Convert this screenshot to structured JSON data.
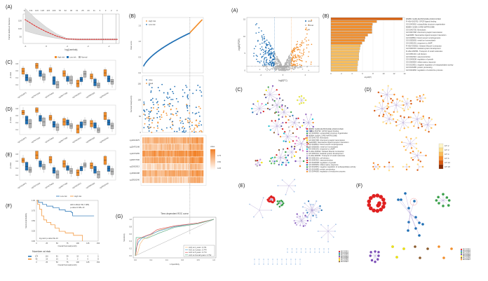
{
  "panels": {
    "left_A": "(A)",
    "left_B": "(B)",
    "left_C": "(C)",
    "left_D": "(D)",
    "left_E": "(E)",
    "left_F": "(F)",
    "left_G": "(G)",
    "right_A": "(A)",
    "right_B": "(B)",
    "right_C": "(C)",
    "right_D": "(D)",
    "right_E": "(E)",
    "right_F": "(F)"
  },
  "colors": {
    "orange": "#f28e2b",
    "blue": "#1f6fb4",
    "grey": "#b5b5b5",
    "red": "#e02020",
    "purple": "#7a5bb5",
    "green": "#3aa04a"
  },
  "chart_data": [
    {
      "id": "lasso_cv",
      "type": "line",
      "xlabel": "log(Lambda)",
      "ylabel": "Partial Likelihood Deviance",
      "top_ticks": [
        "129",
        "131",
        "126",
        "126",
        "115",
        "103",
        "78",
        "62",
        "46",
        "31",
        "25",
        "20",
        "11",
        "6",
        "3",
        "2",
        "0"
      ],
      "x_ticks": [
        "-6",
        "-5",
        "-4",
        "-3",
        "-2"
      ],
      "y_ticks": [
        "50",
        "100",
        "150"
      ],
      "xlim": [
        -6.1,
        -1.5
      ],
      "ylim": [
        10,
        190
      ],
      "x": [
        -6,
        -5.5,
        -5,
        -4.5,
        -4,
        -3.5,
        -3,
        -2.5,
        -2,
        -1.6
      ],
      "y": [
        155,
        115,
        82,
        55,
        37,
        35,
        35,
        35,
        35,
        35
      ],
      "vlines": [
        -2.3,
        -1.65
      ]
    },
    {
      "id": "risk_score",
      "type": "scatter",
      "ylabel": "Risk score",
      "y_ticks": [
        "0.0",
        "0.5",
        "1.0",
        "1.5"
      ],
      "ylim": [
        0,
        1.75
      ],
      "legend": [
        "High risk",
        "Low risk"
      ],
      "cutoff_fraction": 0.78,
      "low_range": [
        0.08,
        1.26
      ],
      "high_range": [
        1.27,
        1.72
      ]
    },
    {
      "id": "survival_status",
      "type": "scatter",
      "ylabel": "Survival time(month)",
      "y_ticks": [
        "0",
        "50",
        "100",
        "150"
      ],
      "ylim": [
        0,
        175
      ],
      "legend": [
        "Alive",
        "Dead"
      ]
    },
    {
      "id": "expression_heatmap",
      "type": "heatmap",
      "rows": [
        "cg13014975",
        "cg25470148",
        "cg11679455",
        "cg09077096",
        "cg22602913",
        "cg16990188",
        "cg19516240"
      ],
      "legend_title": "value",
      "legend_ticks": [
        "0.75",
        "0.50",
        "0.25"
      ]
    },
    {
      "id": "boxplots",
      "type": "bar",
      "legend": [
        "High risk",
        "Low risk",
        "Normal"
      ],
      "ylabel": "β value",
      "categories": [
        "cg13014975",
        "cg25470148",
        "cg11679455",
        "cg09077096",
        "cg22602913",
        "cg16990188",
        "cg19516240"
      ],
      "panels": [
        {
          "name": "C",
          "high": [
            0.68,
            0.86,
            0.72,
            0.6,
            0.26,
            0.5,
            0.62
          ],
          "low": [
            0.46,
            0.6,
            0.36,
            0.42,
            0.4,
            0.3,
            0.42
          ],
          "normal": [
            0.38,
            0.48,
            0.22,
            0.38,
            0.58,
            0.2,
            0.32
          ]
        },
        {
          "name": "D",
          "high": [
            0.8,
            0.88,
            0.62,
            0.48,
            0.24,
            0.42,
            0.68
          ],
          "low": [
            0.54,
            0.6,
            0.4,
            0.46,
            0.38,
            0.36,
            0.46
          ],
          "normal": [
            0.42,
            0.48,
            0.3,
            0.34,
            0.46,
            0.2,
            0.34
          ]
        },
        {
          "name": "E",
          "high": [
            0.72,
            0.9,
            0.74,
            0.6,
            0.3,
            0.54,
            0.72
          ],
          "low": [
            0.52,
            0.6,
            0.38,
            0.46,
            0.44,
            0.4,
            0.44
          ],
          "normal": [
            0.4,
            0.5,
            0.24,
            0.36,
            0.56,
            0.24,
            0.34
          ]
        }
      ]
    },
    {
      "id": "kaplan_meier",
      "type": "line",
      "legend": [
        "Low risk",
        "High risk"
      ],
      "xlabel": "Overall Survival(month)",
      "ylabel": "Survival probability",
      "x_ticks": [
        "0",
        "25",
        "50",
        "75",
        "100",
        "125",
        "150"
      ],
      "y_ticks": [
        "0.00",
        "0.25",
        "0.50",
        "0.75",
        "1.00"
      ],
      "xlim": [
        0,
        150
      ],
      "ylim": [
        0,
        1
      ],
      "annotations": [
        "HR=4.460(2.790,7.085)",
        "p-value=3.48e-10",
        "log-rank p-value=9e-10"
      ],
      "series": [
        {
          "name": "Low risk",
          "x": [
            0,
            5,
            15,
            25,
            40,
            55,
            70,
            85,
            88,
            100,
            140
          ],
          "y": [
            1,
            0.95,
            0.9,
            0.86,
            0.82,
            0.77,
            0.73,
            0.7,
            0.62,
            0.62,
            0.62
          ]
        },
        {
          "name": "High risk",
          "x": [
            0,
            3,
            8,
            13,
            18,
            25,
            35,
            45,
            55,
            70,
            90,
            100,
            110,
            112
          ],
          "y": [
            1,
            0.9,
            0.78,
            0.62,
            0.52,
            0.46,
            0.4,
            0.32,
            0.24,
            0.2,
            0.14,
            0.14,
            0.14,
            0.0
          ]
        }
      ],
      "risk_table": {
        "title": "Number at risk",
        "rows": [
          {
            "group": "Low risk",
            "values": [
              "174",
              "116",
              "81",
              "39",
              "15",
              "6",
              "1"
            ]
          },
          {
            "group": "High risk",
            "values": [
              "42",
              "19",
              "10",
              "5",
              "2",
              "0",
              "0"
            ]
          }
        ]
      }
    },
    {
      "id": "roc",
      "type": "line",
      "title": "Time-dependent ROC curve",
      "xlabel": "1-Specificity",
      "ylabel": "Sensitivity",
      "x_ticks": [
        "0.0",
        "0.2",
        "0.4",
        "0.6",
        "0.8",
        "1.0"
      ],
      "y_ticks": [
        "0.0",
        "0.2",
        "0.4",
        "0.6",
        "0.8",
        "1.0"
      ],
      "legend": [
        {
          "label": "AUC at 1 years: 0.741",
          "color": "#f5b978"
        },
        {
          "label": "AUC at 3 years: 0.744",
          "color": "#5aaad8"
        },
        {
          "label": "AUC at 5 years: 0.773",
          "color": "#e05555"
        },
        {
          "label": "AUC at Overall years: 0.752",
          "color": "#66b28c"
        }
      ],
      "series": [
        {
          "name": "1 years",
          "x": [
            0,
            0.03,
            0.06,
            0.1,
            0.15,
            0.3,
            0.5,
            0.8,
            1
          ],
          "y": [
            0,
            0.08,
            0.32,
            0.45,
            0.5,
            0.7,
            0.8,
            0.9,
            1
          ]
        },
        {
          "name": "3 years",
          "x": [
            0,
            0.01,
            0.04,
            0.08,
            0.12,
            0.3,
            0.5,
            0.8,
            1
          ],
          "y": [
            0,
            0.2,
            0.38,
            0.48,
            0.52,
            0.68,
            0.8,
            0.9,
            1
          ]
        },
        {
          "name": "5 years",
          "x": [
            0,
            0.01,
            0.03,
            0.1,
            0.2,
            0.28,
            0.5,
            0.8,
            1
          ],
          "y": [
            0,
            0.1,
            0.45,
            0.52,
            0.6,
            0.72,
            0.82,
            0.9,
            1
          ]
        },
        {
          "name": "Overall",
          "x": [
            0,
            0.01,
            0.06,
            0.15,
            0.3,
            0.5,
            0.8,
            1
          ],
          "y": [
            0,
            0.5,
            0.5,
            0.48,
            0.62,
            0.78,
            0.88,
            1
          ]
        }
      ]
    },
    {
      "id": "volcano",
      "type": "scatter",
      "xlabel": "log2(FC)",
      "ylabel": "-log10(FDR)",
      "x_ticks": [
        "-4",
        "0",
        "4"
      ],
      "y_ticks": [
        "0",
        "5",
        "10",
        "15"
      ],
      "xlim": [
        -6.5,
        6.5
      ],
      "ylim": [
        -0.5,
        15.5
      ],
      "legend": [
        "down",
        "normal",
        "up"
      ],
      "fc_threshold": 1.5,
      "fdr_threshold": 1.3
    },
    {
      "id": "enrichment_bars",
      "type": "bar",
      "xlabel": "-log10(P)",
      "x_ticks": [
        "0",
        "2",
        "4",
        "6",
        "8",
        "10",
        "12",
        "14"
      ],
      "xlim": [
        0,
        14
      ],
      "categories": [
        "M5885: NABA MATRISOME ASSOCIATED",
        "R-HSA-500792: GPCR ligand binding",
        "GO:0043062: extracellular structure organization",
        "M5884: NABA CORE MATRISOME",
        "GO:0042730: fibrinolysis",
        "GO:0007268: chemical synaptic transmission",
        "hsa04080: Neuroactive ligand-receptor interaction",
        "GO:0048514: blood vessel morphogenesis",
        "GO:0055065: metal ion homeostasis",
        "GO:0051591: response to cAMP",
        "R-HSA-390522: Striated Muscle Contraction",
        "GO:0001501: skeletal system development",
        "R-HSA-382551: Transport of small molecules",
        "GO:0051301: cell division",
        "GO:0042310: vasoconstriction",
        "GO:0040008: regulation of growth",
        "GO:0006954: inflammatory response",
        "GO:0010951: negative regulation of endopeptidase activity",
        "GO:0016485: protein processing",
        "GO:0044060: regulation of endocrine process"
      ],
      "values": [
        13.6,
        8.7,
        7.9,
        7.8,
        7.8,
        7.8,
        7.0,
        6.5,
        6.4,
        5.9,
        5.6,
        5.5,
        5.4,
        5.3,
        5.3,
        5.3,
        5.1,
        5.1,
        5.0,
        5.0
      ]
    },
    {
      "id": "network_C",
      "type": "scatter",
      "legend": [
        "M5885: NABA MATRISOME ASSOCIATED",
        "R-HSA-500792: GPCR ligand binding",
        "GO:0043062: extracellular structure organization",
        "M5884: NABA CORE MATRISOME",
        "GO:0042730: fibrinolysis",
        "GO:0007268: chemical synaptic transmission",
        "hsa04080: Neuroactive ligand-receptor interaction",
        "GO:0048514: blood vessel morphogenesis",
        "GO:0055065: metal ion homeostasis",
        "GO:0051591: response to cAMP",
        "R-HSA-390522: Striated Muscle Contraction",
        "GO:0001501: skeletal system development",
        "R-HSA-382551: Transport of small molecules",
        "GO:0051301: cell division",
        "GO:0042310: vasoconstriction",
        "GO:0040008: regulation of growth",
        "GO:0006954: inflammatory response",
        "GO:0010951: negative regulation of endopeptidase activity",
        "GO:0016485: protein processing",
        "GO:0044060: regulation of endocrine process"
      ]
    },
    {
      "id": "network_D",
      "type": "scatter",
      "legend_title": "p-value",
      "legend": [
        "10^-2",
        "10^-3",
        "10^-4",
        "10^-6",
        "10^-10",
        "10^-20"
      ],
      "legend_colors": [
        "#fff6c8",
        "#ffe08a",
        "#fdbb55",
        "#f78a2a",
        "#d8580e",
        "#8a2d06"
      ]
    },
    {
      "id": "ppi_E",
      "type": "scatter",
      "legend": [
        "MCODE1",
        "MCODE2",
        "MCODE3",
        "MCODE4",
        "MCODE5",
        "MCODE6",
        "MCODE7"
      ],
      "legend_colors": [
        "#e02020",
        "#1f6fb4",
        "#3aa04a",
        "#7a4bb5",
        "#f28e2b",
        "#f2e600",
        "#8b5a2b"
      ]
    },
    {
      "id": "mcode_F",
      "type": "scatter",
      "legend": [
        "MCODE1",
        "MCODE2",
        "MCODE3",
        "MCODE4",
        "MCODE5",
        "MCODE6",
        "MCODE7"
      ],
      "legend_colors": [
        "#e02020",
        "#1f6fb4",
        "#3aa04a",
        "#7a4bb5",
        "#f2e600",
        "#8b5a2b",
        "#f28e2b"
      ]
    }
  ]
}
